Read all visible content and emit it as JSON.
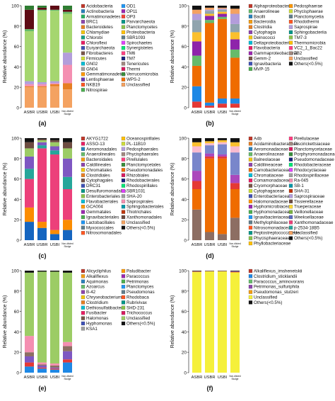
{
  "figure": {
    "ylabel": "Relative abundance (%)",
    "y_ticks": [
      "0",
      "20",
      "40",
      "60",
      "80",
      "100"
    ],
    "samples": [
      "ASBR",
      "USBR",
      "USBI",
      "Non-diluted Sludge"
    ]
  },
  "chart_data": [
    {
      "type": "bar",
      "stacked": true,
      "panel_label": "(a)",
      "categories": [
        "ASBR",
        "USBR",
        "USBI",
        "Non-diluted Sludge"
      ],
      "ylabel": "Relative abundance (%)",
      "ylim": [
        0,
        100
      ],
      "legend": [
        "Acidobacteria",
        "Actinobacteria",
        "Armatimonadetes",
        "BRC1",
        "Bacteroidetes",
        "Chlamydiae",
        "Chlorobi",
        "Chloroflexi",
        "Euryarchaeota",
        "Fibrobacteres",
        "Firmicutes",
        "GN02",
        "GN04",
        "Gemmatimonadetes",
        "Lentisphaerae",
        "NKB19",
        "Nitrospirae",
        "OD1",
        "OP11",
        "OP3",
        "Parvarchaeota",
        "Planctomycetes",
        "Proteobacteria",
        "SBR1093",
        "Spirochaetes",
        "Synergistetes",
        "TM6",
        "TM7",
        "Tenericutes",
        "Thermi",
        "Verrucomicrobia",
        "WPS-2",
        "Unclassified"
      ],
      "colors": [
        "#c0392b",
        "#2980b9",
        "#27ae60",
        "#8e44ad",
        "#e67e22",
        "#f1c40f",
        "#16a085",
        "#e91e63",
        "#3f51b5",
        "#795548",
        "#cddc39",
        "#00bcd4",
        "#9e9e9e",
        "#ff9800",
        "#673ab7",
        "#ff5722",
        "#4caf50",
        "#2196f3",
        "#9c27b0",
        "#f44336",
        "#009688",
        "#8bc34a",
        "#ffc107",
        "#607d8b",
        "#e040fb",
        "#00e676",
        "#ff4081",
        "#1a237e",
        "#a1887f",
        "#d81b60",
        "#388e3c",
        "#ef6c00",
        "#f4a261"
      ],
      "series": [
        {
          "name": "Unclassified",
          "color": "#f4a261",
          "values": [
            20,
            20,
            21,
            18
          ]
        },
        {
          "name": "Bacteroidetes",
          "color": "#e67e22",
          "values": [
            1,
            1,
            2,
            6
          ]
        },
        {
          "name": "Chloroflexi",
          "color": "#f48fb1",
          "values": [
            2,
            2,
            1,
            18
          ]
        },
        {
          "name": "Proteobacteria",
          "color": "#b39ddb",
          "values": [
            3,
            2,
            2,
            12
          ]
        },
        {
          "name": "Firmicutes",
          "color": "#a5d66f",
          "values": [
            49,
            70,
            69,
            38
          ]
        },
        {
          "name": "Planctomycetes",
          "color": "#66bb6a",
          "values": [
            2,
            1,
            1,
            2
          ]
        },
        {
          "name": "Acidobacteria",
          "color": "#5e0b15",
          "values": [
            19,
            2,
            4,
            2
          ]
        },
        {
          "name": "Euryarchaeota",
          "color": "#2e7d32",
          "values": [
            4,
            2,
            0,
            4
          ]
        }
      ]
    },
    {
      "type": "bar",
      "stacked": true,
      "panel_label": "(b)",
      "categories": [
        "ASBR",
        "USBR",
        "USBI",
        "Non-diluted Sludge"
      ],
      "ylabel": "Relative abundance (%)",
      "ylim": [
        0,
        100
      ],
      "legend": [
        "Alphaproteobacteria",
        "Anaerolineae",
        "Bacilli",
        "Bacteroidia",
        "Clostridia",
        "Cytophagia",
        "Deinococci",
        "Deltaproteobacteria",
        "Flavobacteria",
        "Gammaproteobacteria",
        "Gemm-2",
        "Ignavibacteria",
        "MVP-15",
        "Pedosphaerae",
        "Phycisphaerae",
        "Planctomycetia",
        "Rhodothermi",
        "Saprospirae",
        "Sphingobacteriia",
        "TM7-3",
        "Thermomicrobia",
        "VC2_1_Bac22",
        "ZB2",
        "Unclassified",
        "Others(<0.5%)"
      ],
      "colors": [
        "#c0392b",
        "#66bb6a",
        "#2980b9",
        "#f39c12",
        "#e67e22",
        "#8e44ad",
        "#f1c40f",
        "#00bcd4",
        "#e91e63",
        "#9c27b0",
        "#795548",
        "#3f51b5",
        "#4caf50",
        "#ff9800",
        "#cddc39",
        "#607d8b",
        "#ff5722",
        "#b39ddb",
        "#009688",
        "#8bc34a",
        "#ffc107",
        "#ff4081",
        "#a1887f",
        "#f4a261",
        "#111111"
      ],
      "series": [
        {
          "name": "Alphaproteobacteria",
          "color": "#e53935",
          "values": [
            6,
            2,
            4,
            4
          ]
        },
        {
          "name": "Bacilli",
          "color": "#1e88e5",
          "values": [
            15,
            3,
            5,
            5
          ]
        },
        {
          "name": "Clostridia",
          "color": "#ef6c00",
          "values": [
            20,
            78,
            78,
            40
          ]
        },
        {
          "name": "Anaerolineae",
          "color": "#66bb6a",
          "values": [
            10,
            3,
            2,
            8
          ]
        },
        {
          "name": "Gammaproteobacteria",
          "color": "#8e24aa",
          "values": [
            14,
            4,
            3,
            10
          ]
        },
        {
          "name": "Bacteroidia",
          "color": "#fbc02d",
          "values": [
            9,
            2,
            2,
            7
          ]
        },
        {
          "name": "Planctomycetia",
          "color": "#90a4ae",
          "values": [
            12,
            3,
            2,
            8
          ]
        },
        {
          "name": "Saprospirae",
          "color": "#b39ddb",
          "values": [
            6,
            1,
            1,
            10
          ]
        },
        {
          "name": "Unclassified",
          "color": "#f4a261",
          "values": [
            4,
            2,
            1,
            5
          ]
        },
        {
          "name": "Others(<0.5%)",
          "color": "#111111",
          "values": [
            4,
            2,
            2,
            3
          ]
        }
      ]
    },
    {
      "type": "bar",
      "stacked": true,
      "panel_label": "(c)",
      "categories": [
        "ASBR",
        "USBR",
        "USBI",
        "Non-diluted Sludge"
      ],
      "ylabel": "Relative abundance (%)",
      "ylim": [
        0,
        100
      ],
      "legend": [
        "AKYG1722",
        "ASSO-13",
        "Aeromonadales",
        "Anaerolineales",
        "Bacteroidales",
        "Caldilineales",
        "Chromatiales",
        "Clostridiales",
        "Cytophagales",
        "DRC31",
        "Desulfuromonadales",
        "Enterobacteriales",
        "Flavobacteriales",
        "GCA004",
        "Gemmatales",
        "Ignavibacteriales",
        "Lactobacillales",
        "Myxococcales",
        "Nitrosomonadales",
        "Oceanospirillales",
        "PL-11B10",
        "Pedosphaerales",
        "Phycisphaerales",
        "Pirellulales",
        "Planctomycetales",
        "Pseudomonadales",
        "Rhizobiales",
        "Rhodobacterales",
        "Rhodospirillales",
        "SBR1031",
        "SHA-20",
        "Saprospirales",
        "Sphingobacteriales",
        "Thiotrichales",
        "Xanthomonadales",
        "Unclassified",
        "Others(<0.5%)"
      ],
      "colors": [
        "#c0392b",
        "#e91e63",
        "#2980b9",
        "#66bb6a",
        "#f39c12",
        "#8e44ad",
        "#f1c40f",
        "#e67e22",
        "#795548",
        "#3f51b5",
        "#009688",
        "#8bc34a",
        "#00bcd4",
        "#ff9800",
        "#9c27b0",
        "#4caf50",
        "#2196f3",
        "#607d8b",
        "#ff5722",
        "#ffc107",
        "#cddc39",
        "#b39ddb",
        "#a1887f",
        "#ff4081",
        "#388e3c",
        "#ef6c00",
        "#d81b60",
        "#1a237e",
        "#00e676",
        "#e040fb",
        "#9e9e9e",
        "#f48fb1",
        "#0097a7",
        "#bf360c",
        "#6d4c41",
        "#f4a261",
        "#111111"
      ],
      "series": [
        {
          "name": "Clostridiales",
          "color": "#1565c0",
          "values": [
            18,
            12,
            6,
            10
          ]
        },
        {
          "name": "Bacteroidales",
          "color": "#fb8c00",
          "values": [
            14,
            6,
            4,
            10
          ]
        },
        {
          "name": "Lactobacillales",
          "color": "#ec407a",
          "values": [
            28,
            72,
            74,
            30
          ]
        },
        {
          "name": "Anaerolineales",
          "color": "#26a69a",
          "values": [
            10,
            3,
            4,
            12
          ]
        },
        {
          "name": "Rhizobiales",
          "color": "#7e57c2",
          "values": [
            12,
            3,
            4,
            18
          ]
        },
        {
          "name": "Pseudomonadales",
          "color": "#9ccc65",
          "values": [
            8,
            2,
            4,
            10
          ]
        },
        {
          "name": "Unclassified",
          "color": "#6d4c41",
          "values": [
            6,
            1,
            2,
            6
          ]
        },
        {
          "name": "Others(<0.5%)",
          "color": "#111111",
          "values": [
            4,
            1,
            2,
            4
          ]
        }
      ]
    },
    {
      "type": "bar",
      "stacked": true,
      "panel_label": "(d)",
      "categories": [
        "ASBR",
        "USBR",
        "USBI",
        "Non-diluted Sludge"
      ],
      "ylabel": "Relative abundance (%)",
      "ylim": [
        0,
        100
      ],
      "legend": [
        "A4b",
        "Acidaminobacteraceae",
        "Aeromonadaceae",
        "Anaerolinaceae",
        "Balneolaceae",
        "Caldilineaceae",
        "Carnobacteriaceae",
        "Chromatiaceae",
        "Comamonadaceae",
        "Cryomorphaceae",
        "Cytophagaceae",
        "Enterobacteriaceae",
        "Halomonadaceae",
        "Hyphomicrobiaceae",
        "Hyphomonadaceae",
        "Ignavibacteriaceae",
        "Methylophilaceae",
        "Nitrosomonadaceae",
        "Peptostreptococcaceae",
        "Phycisphaeraceae",
        "Phyllobacteriaceae",
        "Pirellulaceae",
        "Piscirickettsiaceae",
        "Planctomycetaceae",
        "Porphyromonadaceae",
        "Pseudomonadaceae",
        "Rhodobacteraceae",
        "Rhodocyclaceae",
        "Rhodospirillaceae",
        "Ra-045",
        "SB-1",
        "SHA-31",
        "Saprospiraceae",
        "Tissierellaceae",
        "Trueperaceae",
        "Veillonellaceae",
        "Weeksellaceae",
        "Xanthomonadaceae",
        "p-2534-18B5",
        "Unclassified",
        "Others(<0.5%)"
      ],
      "colors": [
        "#c0392b",
        "#e67e22",
        "#2980b9",
        "#66bb6a",
        "#f1c40f",
        "#8e44ad",
        "#ef6c00",
        "#00bcd4",
        "#e91e63",
        "#795548",
        "#cddc39",
        "#3f51b5",
        "#ff9800",
        "#9c27b0",
        "#4caf50",
        "#2196f3",
        "#607d8b",
        "#ff5722",
        "#009688",
        "#8bc34a",
        "#ffc107",
        "#ff4081",
        "#a1887f",
        "#d81b60",
        "#388e3c",
        "#1a237e",
        "#00e676",
        "#e040fb",
        "#9e9e9e",
        "#f48fb1",
        "#0097a7",
        "#bf360c",
        "#b39ddb",
        "#6d4c41",
        "#fdd835",
        "#7cb342",
        "#5c6bc0",
        "#ec407a",
        "#26a69a",
        "#f4a261",
        "#111111"
      ],
      "series": [
        {
          "name": "Peptostreptococcaceae",
          "color": "#8d6e63",
          "values": [
            30,
            8,
            6,
            22
          ]
        },
        {
          "name": "Tissierellaceae",
          "color": "#ef6c00",
          "values": [
            20,
            72,
            74,
            28
          ]
        },
        {
          "name": "Comamonadaceae",
          "color": "#e53935",
          "values": [
            8,
            2,
            2,
            6
          ]
        },
        {
          "name": "Rhodocyclaceae",
          "color": "#ab47bc",
          "values": [
            10,
            3,
            2,
            8
          ]
        },
        {
          "name": "Saprospiraceae",
          "color": "#7986cb",
          "values": [
            18,
            8,
            10,
            22
          ]
        },
        {
          "name": "Weeksellaceae",
          "color": "#f8bbd0",
          "values": [
            6,
            2,
            2,
            6
          ]
        },
        {
          "name": "Unclassified",
          "color": "#fbc02d",
          "values": [
            4,
            2,
            2,
            4
          ]
        },
        {
          "name": "Others(<0.5%)",
          "color": "#111111",
          "values": [
            4,
            3,
            2,
            4
          ]
        }
      ]
    },
    {
      "type": "bar",
      "stacked": true,
      "panel_label": "(e)",
      "categories": [
        "ASBR",
        "USBR",
        "USBI",
        "Non-diluted Sludge"
      ],
      "ylabel": "Relative abundance (%)",
      "ylim": [
        0,
        100
      ],
      "legend": [
        "Alicycliphilus",
        "Alkaliflexus",
        "Aquimonas",
        "Azoarcus",
        "B-42",
        "Chryseobacterium",
        "Clostridium",
        "Dethiosulfatibacter",
        "Fusibacter",
        "Halomonas",
        "Hyphomonas",
        "KSA1",
        "Paludibacter",
        "Paracoccus",
        "Petrimonas",
        "Planctomyces",
        "Pseudomonas",
        "Rhodobaca",
        "Rubrivivax",
        "SHD-231",
        "Trichococcus",
        "Unclassified",
        "Others(<0.5%)"
      ],
      "colors": [
        "#c0392b",
        "#f39c12",
        "#2980b9",
        "#66bb6a",
        "#8e44ad",
        "#f1c40f",
        "#e67e22",
        "#00bcd4",
        "#e91e63",
        "#795548",
        "#3f51b5",
        "#9e9e9e",
        "#ff9800",
        "#9c27b0",
        "#4caf50",
        "#2196f3",
        "#607d8b",
        "#ff5722",
        "#009688",
        "#8bc34a",
        "#d81b60",
        "#9ccc65",
        "#111111"
      ],
      "series": [
        {
          "name": "Clostridium",
          "color": "#1e88e5",
          "values": [
            6,
            4,
            3,
            10
          ]
        },
        {
          "name": "Paracoccus",
          "color": "#e53935",
          "values": [
            4,
            1,
            1,
            3
          ]
        },
        {
          "name": "Fusibacter",
          "color": "#7e57c2",
          "values": [
            6,
            2,
            1,
            8
          ]
        },
        {
          "name": "Trichococcus",
          "color": "#8d6e63",
          "values": [
            4,
            1,
            2,
            5
          ]
        },
        {
          "name": "Chryseobacterium",
          "color": "#f48fb1",
          "values": [
            16,
            2,
            2,
            4
          ]
        },
        {
          "name": "Unclassified",
          "color": "#9ccc65",
          "values": [
            62,
            89,
            90,
            68
          ]
        },
        {
          "name": "Others(<0.5%)",
          "color": "#111111",
          "values": [
            2,
            1,
            1,
            2
          ]
        }
      ]
    },
    {
      "type": "bar",
      "stacked": true,
      "panel_label": "(f)",
      "categories": [
        "ASBR",
        "USBR",
        "USBI",
        "Non-diluted Sludge"
      ],
      "ylabel": "Relative abundance (%)",
      "ylim": [
        0,
        100
      ],
      "legend": [
        "Alkaliflexus_imshenetskii",
        "Clostridium_sticklandii",
        "Paracoccus_aminovorans",
        "Petrimonas_sulfuriphila",
        "Pseudomonas_stutzeri",
        "Unclassified",
        "Others(<0.5%)"
      ],
      "colors": [
        "#c0392b",
        "#1e88e5",
        "#66bb6a",
        "#8e44ad",
        "#f39c12",
        "#f5f03a",
        "#111111"
      ],
      "series": [
        {
          "name": "Unclassified",
          "color": "#f5f03a",
          "values": [
            98.5,
            99.2,
            99.2,
            98.0
          ]
        },
        {
          "name": "Pseudomonas_stutzeri",
          "color": "#f39c12",
          "values": [
            0.6,
            0.3,
            0.3,
            0.8
          ]
        },
        {
          "name": "Petrimonas_sulfuriphila",
          "color": "#8e44ad",
          "values": [
            0.4,
            0.2,
            0.2,
            0.6
          ]
        },
        {
          "name": "Others(<0.5%)",
          "color": "#111111",
          "values": [
            0.5,
            0.3,
            0.3,
            0.6
          ]
        }
      ]
    }
  ]
}
